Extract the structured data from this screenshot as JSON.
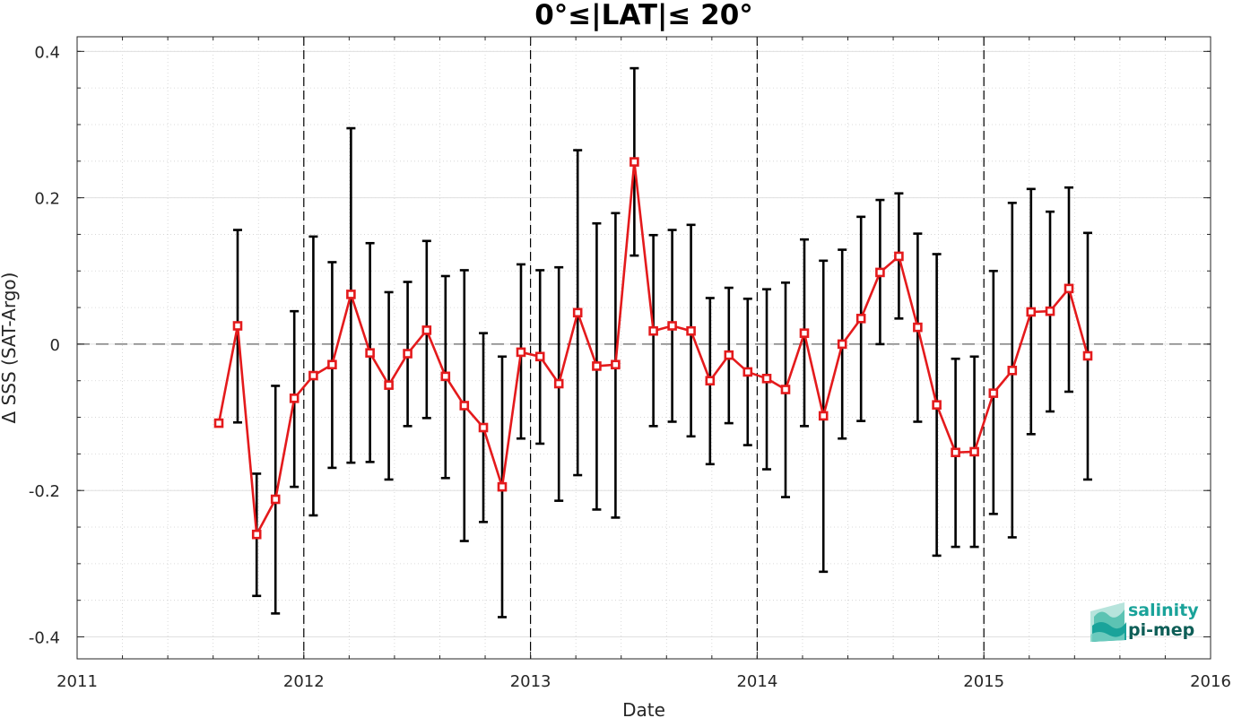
{
  "chart_data": {
    "type": "line",
    "title": "0°≤|LAT|≤ 20°",
    "xlabel": "Date",
    "ylabel": "Δ SSS (SAT-Argo)",
    "xlim": [
      2011,
      2016
    ],
    "ylim": [
      -0.43,
      0.42
    ],
    "xticks": [
      "2011",
      "2012",
      "2013",
      "2014",
      "2015",
      "2016"
    ],
    "yticks": [
      "0.4",
      "0.2",
      "0",
      "-0.2",
      "-0.4"
    ],
    "ytick_values": [
      0.4,
      0.2,
      0,
      -0.2,
      -0.4
    ],
    "year_separators": [
      2012,
      2013,
      2014,
      2015
    ],
    "zero_line": 0,
    "grid": true,
    "minor_grid": true,
    "series": [
      {
        "color": "#e41a1c",
        "errorbar_color": "#000000",
        "x": [
          2011.625,
          2011.708,
          2011.792,
          2011.875,
          2011.958,
          2012.042,
          2012.125,
          2012.208,
          2012.292,
          2012.375,
          2012.458,
          2012.542,
          2012.625,
          2012.708,
          2012.792,
          2012.875,
          2012.958,
          2013.042,
          2013.125,
          2013.208,
          2013.292,
          2013.375,
          2013.458,
          2013.542,
          2013.625,
          2013.708,
          2013.792,
          2013.875,
          2013.958,
          2014.042,
          2014.125,
          2014.208,
          2014.292,
          2014.375,
          2014.458,
          2014.542,
          2014.625,
          2014.708,
          2014.792,
          2014.875,
          2014.958,
          2015.042,
          2015.125,
          2015.208,
          2015.292,
          2015.375,
          2015.458
        ],
        "y": [
          -0.108,
          0.025,
          -0.26,
          -0.212,
          -0.074,
          -0.043,
          -0.028,
          0.068,
          -0.012,
          -0.056,
          -0.013,
          0.019,
          -0.044,
          -0.084,
          -0.114,
          -0.195,
          -0.011,
          -0.017,
          -0.054,
          0.043,
          -0.03,
          -0.028,
          0.249,
          0.018,
          0.025,
          0.018,
          -0.05,
          -0.015,
          -0.038,
          -0.047,
          -0.062,
          0.015,
          -0.098,
          0.0,
          0.035,
          0.098,
          0.12,
          0.023,
          -0.083,
          -0.148,
          -0.147,
          -0.067,
          -0.036,
          0.044,
          0.045,
          0.076,
          -0.016
        ],
        "err_low": [
          null,
          -0.107,
          -0.344,
          -0.368,
          -0.195,
          -0.234,
          -0.169,
          -0.162,
          -0.161,
          -0.185,
          -0.112,
          -0.101,
          -0.183,
          -0.269,
          -0.243,
          -0.373,
          -0.129,
          -0.136,
          -0.214,
          -0.179,
          -0.226,
          -0.237,
          0.121,
          -0.112,
          -0.106,
          -0.126,
          -0.164,
          -0.108,
          -0.138,
          -0.171,
          -0.209,
          -0.112,
          -0.311,
          -0.129,
          -0.105,
          0.0,
          0.035,
          -0.106,
          -0.289,
          -0.277,
          -0.277,
          -0.232,
          -0.264,
          -0.123,
          -0.092,
          -0.065,
          -0.185
        ],
        "err_high": [
          null,
          0.156,
          -0.177,
          -0.057,
          0.045,
          0.147,
          0.112,
          0.295,
          0.138,
          0.071,
          0.085,
          0.141,
          0.093,
          0.101,
          0.015,
          -0.017,
          0.109,
          0.101,
          0.105,
          0.265,
          0.165,
          0.179,
          0.377,
          0.149,
          0.156,
          0.163,
          0.063,
          0.077,
          0.062,
          0.075,
          0.084,
          0.143,
          0.114,
          0.129,
          0.174,
          0.197,
          0.206,
          0.151,
          0.123,
          -0.02,
          -0.017,
          0.1,
          0.193,
          0.212,
          0.181,
          0.214,
          0.152
        ]
      }
    ]
  },
  "logo": {
    "line1": "salinity",
    "line2": "pi-mep",
    "color1": "#1aa39a",
    "color2": "#0e5e57"
  }
}
